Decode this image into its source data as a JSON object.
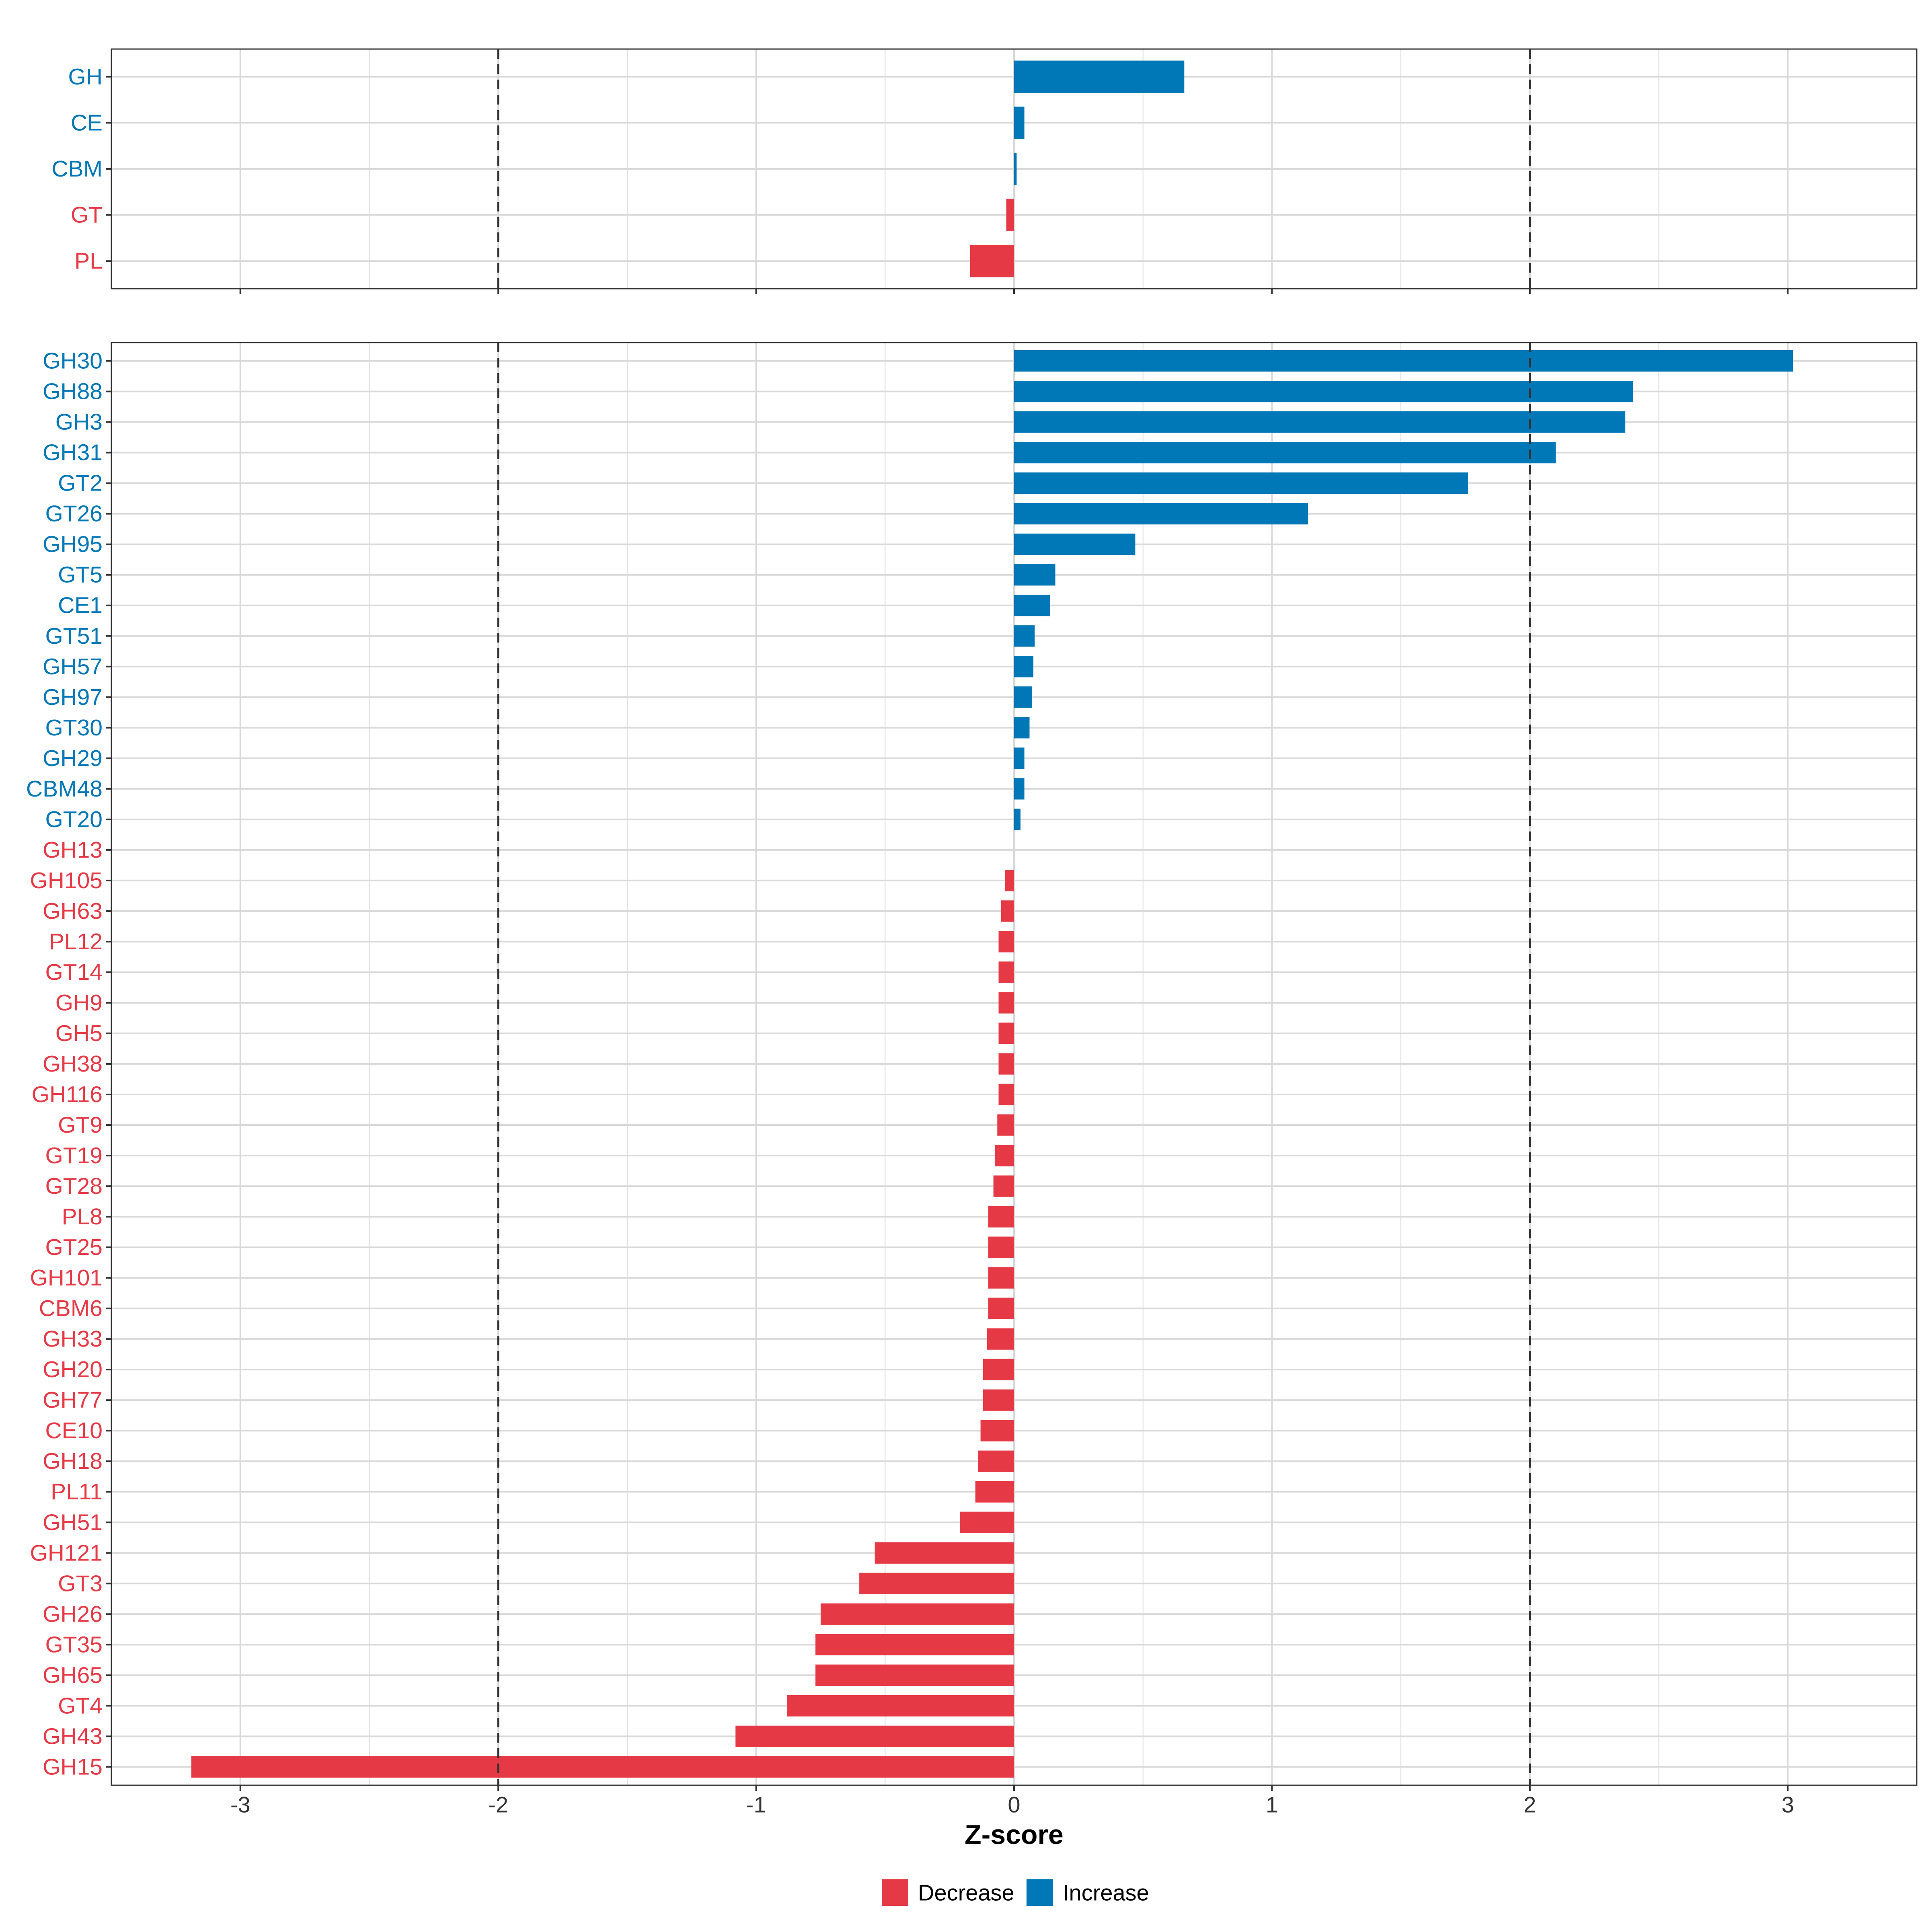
{
  "chart_data": [
    {
      "type": "bar",
      "orientation": "horizontal",
      "panel": "class-level",
      "categories": [
        "GH",
        "CE",
        "CBM",
        "GT",
        "PL"
      ],
      "values": [
        0.66,
        0.04,
        0.01,
        -0.03,
        -0.17
      ],
      "xlim": [
        -3.5,
        3.5
      ],
      "reference_lines": [
        -2,
        2
      ]
    },
    {
      "type": "bar",
      "orientation": "horizontal",
      "panel": "family-level",
      "categories": [
        "GH30",
        "GH88",
        "GH3",
        "GH31",
        "GT2",
        "GT26",
        "GH95",
        "GT5",
        "CE1",
        "GT51",
        "GH57",
        "GH97",
        "GT30",
        "GH29",
        "CBM48",
        "GT20",
        "GH13",
        "GH105",
        "GH63",
        "PL12",
        "GT14",
        "GH9",
        "GH5",
        "GH38",
        "GH116",
        "GT9",
        "GT19",
        "GT28",
        "PL8",
        "GT25",
        "GH101",
        "CBM6",
        "GH33",
        "GH20",
        "GH77",
        "CE10",
        "GH18",
        "PL11",
        "GH51",
        "GH121",
        "GT3",
        "GH26",
        "GT35",
        "GH65",
        "GT4",
        "GH43",
        "GH15"
      ],
      "values": [
        3.02,
        2.4,
        2.37,
        2.1,
        1.76,
        1.14,
        0.47,
        0.16,
        0.14,
        0.08,
        0.075,
        0.07,
        0.06,
        0.04,
        0.04,
        0.025,
        0.0,
        -0.035,
        -0.05,
        -0.06,
        -0.06,
        -0.06,
        -0.06,
        -0.06,
        -0.06,
        -0.065,
        -0.075,
        -0.08,
        -0.1,
        -0.1,
        -0.1,
        -0.1,
        -0.105,
        -0.12,
        -0.12,
        -0.13,
        -0.14,
        -0.15,
        -0.21,
        -0.54,
        -0.6,
        -0.75,
        -0.77,
        -0.77,
        -0.88,
        -1.08,
        -3.19
      ],
      "xlim": [
        -3.5,
        3.5
      ],
      "reference_lines": [
        -2,
        2
      ],
      "xticks": [
        -3,
        -2,
        -1,
        0,
        1,
        2,
        3
      ],
      "xticklabels": [
        "-3",
        "-2",
        "-1",
        "0",
        "1",
        "2",
        "3"
      ],
      "xlabel": "Z-score",
      "ylabel": ""
    }
  ],
  "legend": {
    "placement": "bottom-center",
    "items": [
      {
        "label": "Decrease",
        "color": "#E63946"
      },
      {
        "label": "Increase",
        "color": "#0077B6"
      }
    ]
  },
  "colors": {
    "increase": "#0077B6",
    "decrease": "#E63946",
    "grid": "#D9D9D9",
    "panel_border": "#333333",
    "reference_line": "#333333"
  }
}
